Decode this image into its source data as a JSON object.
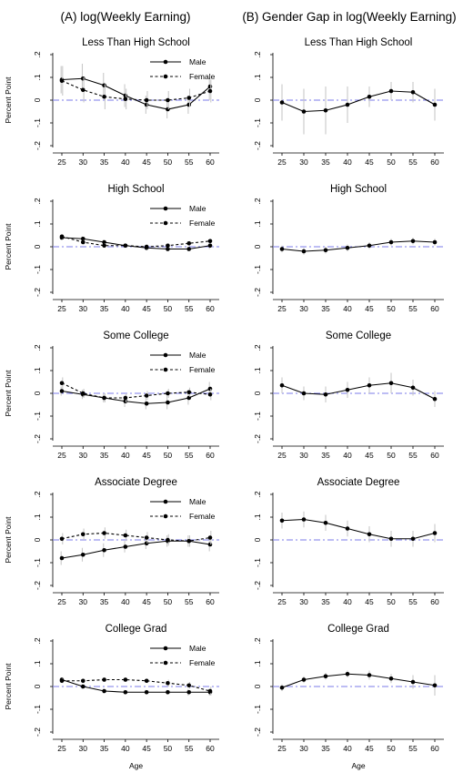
{
  "columns": {
    "left_title": "(A) log(Weekly Earning)",
    "right_title": "(B) Gender Gap in log(Weekly Earning)"
  },
  "axis_text": {
    "ylabel": "Percent Point",
    "xlabel": "Age",
    "yticks": [
      "-.2",
      "-.1",
      "0",
      ".1",
      ".2"
    ],
    "xticks": [
      "25",
      "30",
      "35",
      "40",
      "45",
      "50",
      "55",
      "60"
    ]
  },
  "legend": {
    "male": "Male",
    "female": "Female"
  },
  "colors": {
    "line": "#000000",
    "ci": "#c8c8c8",
    "zero_line": "#7b7bea"
  },
  "chart_data": [
    {
      "panel": "A",
      "type": "line",
      "title": "Less Than High School",
      "x": [
        25,
        30,
        35,
        40,
        45,
        50,
        55,
        60
      ],
      "ylim": [
        -0.2,
        0.2
      ],
      "xlabel": "",
      "ylabel": "Percent Point",
      "series": [
        {
          "name": "Male",
          "style": "solid",
          "values": [
            0.09,
            0.095,
            0.065,
            0.02,
            -0.02,
            -0.04,
            -0.02,
            0.06
          ],
          "ci": [
            [
              0.03,
              0.15
            ],
            [
              0.035,
              0.16
            ],
            [
              0.01,
              0.12
            ],
            [
              -0.03,
              0.07
            ],
            [
              -0.06,
              0.02
            ],
            [
              -0.08,
              0.0
            ],
            [
              -0.06,
              0.02
            ],
            [
              0.0,
              0.1
            ]
          ]
        },
        {
          "name": "Female",
          "style": "dashed",
          "values": [
            0.085,
            0.045,
            0.015,
            0.005,
            0.0,
            0.0,
            0.01,
            0.04
          ],
          "ci": [
            [
              0.02,
              0.15
            ],
            [
              -0.01,
              0.1
            ],
            [
              -0.04,
              0.07
            ],
            [
              -0.04,
              0.05
            ],
            [
              -0.04,
              0.04
            ],
            [
              -0.04,
              0.04
            ],
            [
              -0.03,
              0.05
            ],
            [
              -0.01,
              0.09
            ]
          ]
        }
      ]
    },
    {
      "panel": "B",
      "type": "line",
      "title": "Less Than High School",
      "x": [
        25,
        30,
        35,
        40,
        45,
        50,
        55,
        60
      ],
      "ylim": [
        -0.2,
        0.2
      ],
      "xlabel": "",
      "ylabel": "Percent Point",
      "series": [
        {
          "name": "",
          "style": "solid",
          "values": [
            -0.01,
            -0.05,
            -0.045,
            -0.02,
            0.015,
            0.04,
            0.035,
            -0.02
          ],
          "ci": [
            [
              -0.09,
              0.07
            ],
            [
              -0.15,
              0.05
            ],
            [
              -0.15,
              0.06
            ],
            [
              -0.1,
              0.06
            ],
            [
              -0.03,
              0.06
            ],
            [
              0.0,
              0.08
            ],
            [
              -0.01,
              0.08
            ],
            [
              -0.09,
              0.05
            ]
          ]
        }
      ]
    },
    {
      "panel": "A",
      "type": "line",
      "title": "High School",
      "x": [
        25,
        30,
        35,
        40,
        45,
        50,
        55,
        60
      ],
      "ylim": [
        -0.2,
        0.2
      ],
      "xlabel": "",
      "ylabel": "Percent Point",
      "series": [
        {
          "name": "Male",
          "style": "solid",
          "values": [
            0.04,
            0.035,
            0.02,
            0.005,
            -0.005,
            -0.01,
            -0.01,
            0.005
          ],
          "ci": [
            [
              0.03,
              0.05
            ],
            [
              0.025,
              0.045
            ],
            [
              0.01,
              0.03
            ],
            [
              -0.005,
              0.015
            ],
            [
              -0.015,
              0.005
            ],
            [
              -0.02,
              0.0
            ],
            [
              -0.02,
              0.0
            ],
            [
              -0.01,
              0.02
            ]
          ]
        },
        {
          "name": "Female",
          "style": "dashed",
          "values": [
            0.045,
            0.02,
            0.005,
            0.005,
            0.0,
            0.005,
            0.015,
            0.025
          ],
          "ci": [
            [
              0.035,
              0.055
            ],
            [
              0.01,
              0.03
            ],
            [
              -0.005,
              0.015
            ],
            [
              -0.005,
              0.015
            ],
            [
              -0.01,
              0.01
            ],
            [
              -0.005,
              0.015
            ],
            [
              0.005,
              0.025
            ],
            [
              0.015,
              0.035
            ]
          ]
        }
      ]
    },
    {
      "panel": "B",
      "type": "line",
      "title": "High School",
      "x": [
        25,
        30,
        35,
        40,
        45,
        50,
        55,
        60
      ],
      "ylim": [
        -0.2,
        0.2
      ],
      "xlabel": "",
      "ylabel": "Percent Point",
      "series": [
        {
          "name": "",
          "style": "solid",
          "values": [
            -0.01,
            -0.02,
            -0.015,
            -0.005,
            0.005,
            0.02,
            0.025,
            0.02
          ],
          "ci": [
            [
              -0.025,
              0.005
            ],
            [
              -0.035,
              -0.005
            ],
            [
              -0.03,
              0.0
            ],
            [
              -0.02,
              0.01
            ],
            [
              -0.01,
              0.02
            ],
            [
              0.005,
              0.035
            ],
            [
              0.01,
              0.04
            ],
            [
              0.005,
              0.035
            ]
          ]
        }
      ]
    },
    {
      "panel": "A",
      "type": "line",
      "title": "Some College",
      "x": [
        25,
        30,
        35,
        40,
        45,
        50,
        55,
        60
      ],
      "ylim": [
        -0.2,
        0.2
      ],
      "xlabel": "",
      "ylabel": "Percent Point",
      "series": [
        {
          "name": "Male",
          "style": "solid",
          "values": [
            0.01,
            -0.005,
            -0.02,
            -0.035,
            -0.045,
            -0.04,
            -0.02,
            0.02
          ],
          "ci": [
            [
              -0.01,
              0.03
            ],
            [
              -0.025,
              0.015
            ],
            [
              -0.04,
              0.0
            ],
            [
              -0.06,
              -0.01
            ],
            [
              -0.07,
              -0.02
            ],
            [
              -0.07,
              -0.01
            ],
            [
              -0.05,
              0.01
            ],
            [
              -0.01,
              0.05
            ]
          ]
        },
        {
          "name": "Female",
          "style": "dashed",
          "values": [
            0.045,
            0.0,
            -0.02,
            -0.02,
            -0.01,
            0.0,
            0.005,
            -0.005
          ],
          "ci": [
            [
              0.02,
              0.07
            ],
            [
              -0.02,
              0.02
            ],
            [
              -0.04,
              0.0
            ],
            [
              -0.04,
              0.0
            ],
            [
              -0.03,
              0.01
            ],
            [
              -0.02,
              0.02
            ],
            [
              -0.015,
              0.025
            ],
            [
              -0.03,
              0.02
            ]
          ]
        }
      ]
    },
    {
      "panel": "B",
      "type": "line",
      "title": "Some College",
      "x": [
        25,
        30,
        35,
        40,
        45,
        50,
        55,
        60
      ],
      "ylim": [
        -0.2,
        0.2
      ],
      "xlabel": "",
      "ylabel": "Percent Point",
      "series": [
        {
          "name": "",
          "style": "solid",
          "values": [
            0.035,
            0.0,
            -0.005,
            0.015,
            0.035,
            0.045,
            0.025,
            -0.025
          ],
          "ci": [
            [
              0.0,
              0.07
            ],
            [
              -0.03,
              0.03
            ],
            [
              -0.04,
              0.03
            ],
            [
              -0.02,
              0.05
            ],
            [
              0.0,
              0.07
            ],
            [
              0.0,
              0.09
            ],
            [
              -0.01,
              0.06
            ],
            [
              -0.06,
              0.01
            ]
          ]
        }
      ]
    },
    {
      "panel": "A",
      "type": "line",
      "title": "Associate Degree",
      "x": [
        25,
        30,
        35,
        40,
        45,
        50,
        55,
        60
      ],
      "ylim": [
        -0.2,
        0.2
      ],
      "xlabel": "",
      "ylabel": "Percent Point",
      "series": [
        {
          "name": "Male",
          "style": "solid",
          "values": [
            -0.08,
            -0.065,
            -0.045,
            -0.03,
            -0.015,
            -0.005,
            -0.005,
            -0.02
          ],
          "ci": [
            [
              -0.11,
              -0.05
            ],
            [
              -0.095,
              -0.035
            ],
            [
              -0.075,
              -0.015
            ],
            [
              -0.055,
              -0.005
            ],
            [
              -0.04,
              0.01
            ],
            [
              -0.03,
              0.02
            ],
            [
              -0.03,
              0.02
            ],
            [
              -0.05,
              0.01
            ]
          ]
        },
        {
          "name": "Female",
          "style": "dashed",
          "values": [
            0.005,
            0.025,
            0.03,
            0.02,
            0.01,
            0.0,
            -0.005,
            0.01
          ],
          "ci": [
            [
              -0.02,
              0.03
            ],
            [
              0.0,
              0.05
            ],
            [
              0.005,
              0.055
            ],
            [
              -0.005,
              0.045
            ],
            [
              -0.015,
              0.035
            ],
            [
              -0.025,
              0.025
            ],
            [
              -0.03,
              0.02
            ],
            [
              -0.02,
              0.04
            ]
          ]
        }
      ]
    },
    {
      "panel": "B",
      "type": "line",
      "title": "Associate Degree",
      "x": [
        25,
        30,
        35,
        40,
        45,
        50,
        55,
        60
      ],
      "ylim": [
        -0.2,
        0.2
      ],
      "xlabel": "",
      "ylabel": "Percent Point",
      "series": [
        {
          "name": "",
          "style": "solid",
          "values": [
            0.085,
            0.09,
            0.075,
            0.05,
            0.025,
            0.005,
            0.005,
            0.03
          ],
          "ci": [
            [
              0.05,
              0.12
            ],
            [
              0.055,
              0.125
            ],
            [
              0.04,
              0.11
            ],
            [
              0.015,
              0.085
            ],
            [
              -0.01,
              0.06
            ],
            [
              -0.03,
              0.04
            ],
            [
              -0.03,
              0.04
            ],
            [
              -0.01,
              0.07
            ]
          ]
        }
      ]
    },
    {
      "panel": "A",
      "type": "line",
      "title": "College Grad",
      "x": [
        25,
        30,
        35,
        40,
        45,
        50,
        55,
        60
      ],
      "ylim": [
        -0.2,
        0.2
      ],
      "xlabel": "Age",
      "ylabel": "Percent Point",
      "series": [
        {
          "name": "Male",
          "style": "solid",
          "values": [
            0.03,
            0.0,
            -0.02,
            -0.025,
            -0.025,
            -0.025,
            -0.025,
            -0.025
          ],
          "ci": [
            [
              0.02,
              0.04
            ],
            [
              -0.01,
              0.01
            ],
            [
              -0.03,
              -0.01
            ],
            [
              -0.035,
              -0.015
            ],
            [
              -0.035,
              -0.015
            ],
            [
              -0.035,
              -0.015
            ],
            [
              -0.04,
              -0.01
            ],
            [
              -0.04,
              -0.01
            ]
          ]
        },
        {
          "name": "Female",
          "style": "dashed",
          "values": [
            0.025,
            0.025,
            0.03,
            0.03,
            0.025,
            0.015,
            0.005,
            -0.02
          ],
          "ci": [
            [
              0.015,
              0.035
            ],
            [
              0.015,
              0.035
            ],
            [
              0.02,
              0.04
            ],
            [
              0.02,
              0.04
            ],
            [
              0.015,
              0.035
            ],
            [
              0.0,
              0.03
            ],
            [
              -0.01,
              0.02
            ],
            [
              -0.04,
              0.0
            ]
          ]
        }
      ]
    },
    {
      "panel": "B",
      "type": "line",
      "title": "College Grad",
      "x": [
        25,
        30,
        35,
        40,
        45,
        50,
        55,
        60
      ],
      "ylim": [
        -0.2,
        0.2
      ],
      "xlabel": "Age",
      "ylabel": "Percent Point",
      "series": [
        {
          "name": "",
          "style": "solid",
          "values": [
            -0.005,
            0.03,
            0.045,
            0.055,
            0.05,
            0.035,
            0.02,
            0.005
          ],
          "ci": [
            [
              -0.02,
              0.01
            ],
            [
              0.015,
              0.045
            ],
            [
              0.03,
              0.06
            ],
            [
              0.04,
              0.07
            ],
            [
              0.03,
              0.07
            ],
            [
              0.015,
              0.055
            ],
            [
              -0.01,
              0.05
            ],
            [
              -0.04,
              0.05
            ]
          ]
        }
      ]
    }
  ]
}
